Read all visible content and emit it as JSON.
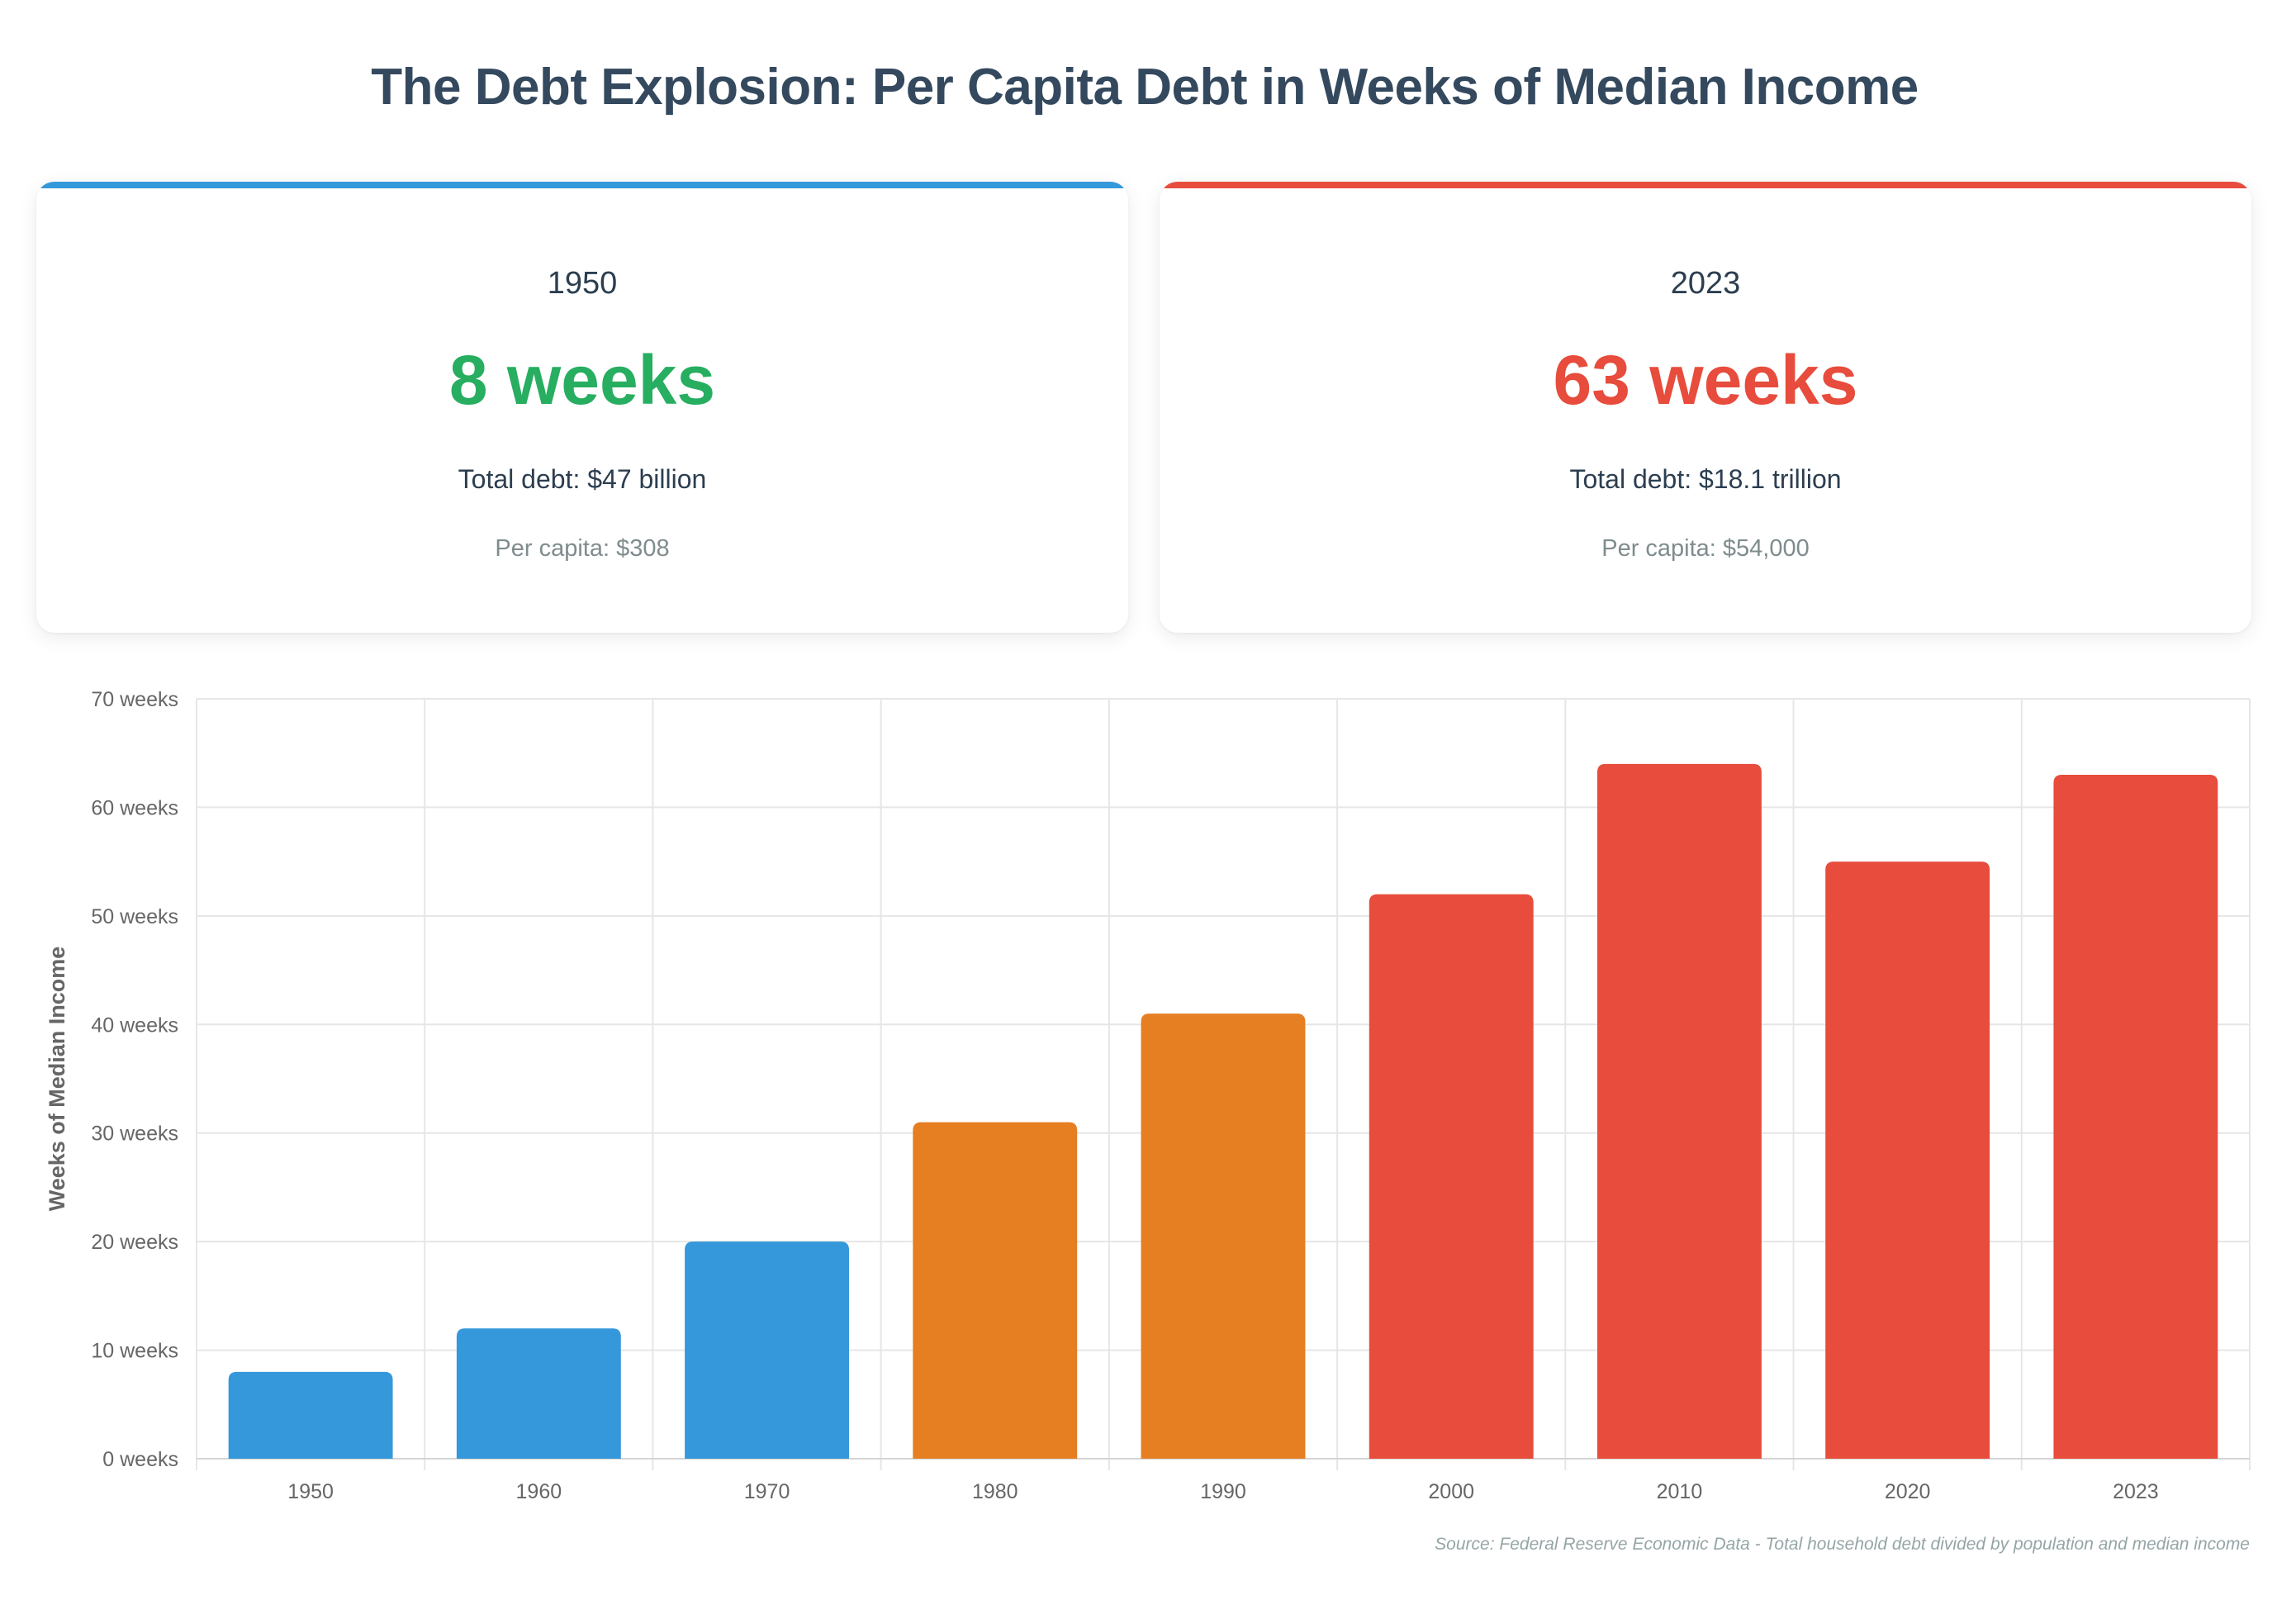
{
  "title": "The Debt Explosion: Per Capita Debt in Weeks of Median Income",
  "cards": [
    {
      "year": "1950",
      "weeks": "8 weeks",
      "total_debt": "Total debt: $47 billion",
      "per_capita": "Per capita: $308",
      "accent_color": "#3498db",
      "value_color": "#27ae60"
    },
    {
      "year": "2023",
      "weeks": "63 weeks",
      "total_debt": "Total debt: $18.1 trillion",
      "per_capita": "Per capita: $54,000",
      "accent_color": "#e74c3c",
      "value_color": "#e74c3c"
    }
  ],
  "chart_data": {
    "type": "bar",
    "categories": [
      "1950",
      "1960",
      "1970",
      "1980",
      "1990",
      "2000",
      "2010",
      "2020",
      "2023"
    ],
    "values": [
      8,
      12,
      20,
      31,
      41,
      52,
      64,
      55,
      63
    ],
    "bar_colors": [
      "#3498db",
      "#3498db",
      "#3498db",
      "#e67e22",
      "#e67e22",
      "#e74c3c",
      "#e74c3c",
      "#e74c3c",
      "#e74c3c"
    ],
    "ylabel": "Weeks of Median Income",
    "xlabel": "",
    "ylim": [
      0,
      70
    ],
    "yticks": [
      0,
      10,
      20,
      30,
      40,
      50,
      60,
      70
    ],
    "ytick_suffix": " weeks",
    "grid": true,
    "legend": false
  },
  "source": "Source: Federal Reserve Economic Data - Total household debt divided by population and median income"
}
